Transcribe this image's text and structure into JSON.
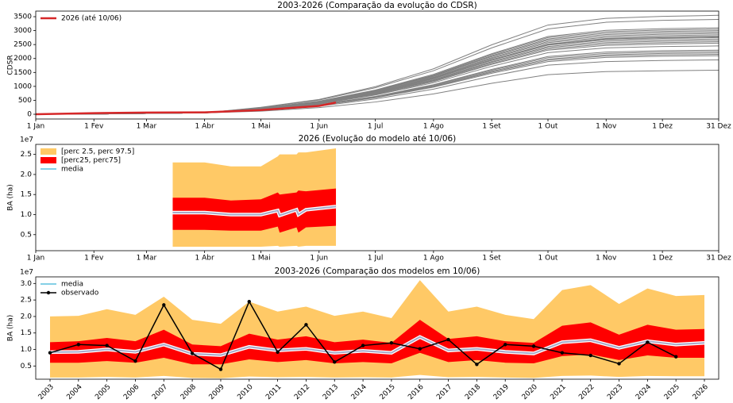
{
  "chart_data": [
    {
      "type": "line",
      "title": "2003-2026 (Comparação da evolução do CDSR)",
      "ylabel": "CDSR",
      "legend": "upper left",
      "xlim": [
        1,
        365
      ],
      "xticks": [
        {
          "value": 1,
          "label": "1 Jan"
        },
        {
          "value": 32,
          "label": "1 Fev"
        },
        {
          "value": 60,
          "label": "1 Mar"
        },
        {
          "value": 91,
          "label": "1 Abr"
        },
        {
          "value": 121,
          "label": "1 Mai"
        },
        {
          "value": 152,
          "label": "1 Jun"
        },
        {
          "value": 182,
          "label": "1 Jul"
        },
        {
          "value": 213,
          "label": "1 Ago"
        },
        {
          "value": 244,
          "label": "1 Set"
        },
        {
          "value": 274,
          "label": "1 Out"
        },
        {
          "value": 305,
          "label": "1 Nov"
        },
        {
          "value": 335,
          "label": "1 Dez"
        },
        {
          "value": 365,
          "label": "31 Dez"
        }
      ],
      "ylim": [
        -170,
        3700
      ],
      "yticks": [
        0,
        500,
        1000,
        1500,
        2000,
        2500,
        3000,
        3500
      ],
      "x": [
        1,
        32,
        60,
        91,
        121,
        152,
        182,
        213,
        244,
        274,
        305,
        335,
        365
      ],
      "series": [
        {
          "color": "#808080",
          "values": [
            0,
            10,
            30,
            50,
            250,
            530,
            990,
            1630,
            2490,
            3200,
            3440,
            3510,
            3550
          ]
        },
        {
          "color": "#808080",
          "values": [
            0,
            10,
            30,
            50,
            240,
            510,
            950,
            1560,
            2380,
            3060,
            3300,
            3370,
            3400
          ]
        },
        {
          "color": "#808080",
          "values": [
            0,
            10,
            30,
            50,
            220,
            470,
            870,
            1430,
            2170,
            2790,
            3010,
            3070,
            3100
          ]
        },
        {
          "color": "#808080",
          "values": [
            0,
            10,
            30,
            50,
            210,
            460,
            850,
            1400,
            2140,
            2750,
            2960,
            3020,
            3050
          ]
        },
        {
          "color": "#808080",
          "values": [
            0,
            10,
            30,
            50,
            210,
            450,
            840,
            1380,
            2100,
            2700,
            2910,
            2970,
            3000
          ]
        },
        {
          "color": "#808080",
          "values": [
            0,
            10,
            30,
            50,
            210,
            440,
            830,
            1360,
            2070,
            2660,
            2860,
            2920,
            2950
          ]
        },
        {
          "color": "#808080",
          "values": [
            0,
            10,
            30,
            50,
            200,
            440,
            810,
            1330,
            2030,
            2610,
            2810,
            2870,
            2900
          ]
        },
        {
          "color": "#808080",
          "values": [
            0,
            10,
            30,
            50,
            200,
            430,
            800,
            1310,
            2000,
            2570,
            2760,
            2820,
            2850
          ]
        },
        {
          "color": "#808080",
          "values": [
            0,
            10,
            30,
            50,
            200,
            420,
            780,
            1290,
            1960,
            2520,
            2720,
            2770,
            2800
          ]
        },
        {
          "color": "#808080",
          "values": [
            0,
            10,
            30,
            50,
            190,
            420,
            780,
            1280,
            1950,
            2500,
            2700,
            2750,
            2780
          ]
        },
        {
          "color": "#808080",
          "values": [
            0,
            10,
            30,
            50,
            190,
            410,
            770,
            1270,
            1930,
            2480,
            2670,
            2720,
            2750
          ]
        },
        {
          "color": "#808080",
          "values": [
            0,
            10,
            30,
            50,
            190,
            410,
            760,
            1240,
            1890,
            2430,
            2620,
            2670,
            2700
          ]
        },
        {
          "color": "#808080",
          "values": [
            0,
            10,
            30,
            50,
            190,
            400,
            740,
            1220,
            1860,
            2390,
            2570,
            2620,
            2650
          ]
        },
        {
          "color": "#808080",
          "values": [
            0,
            10,
            30,
            50,
            180,
            390,
            730,
            1200,
            1820,
            2340,
            2520,
            2570,
            2600
          ]
        },
        {
          "color": "#808080",
          "values": [
            0,
            10,
            30,
            50,
            180,
            380,
            710,
            1170,
            1790,
            2300,
            2470,
            2520,
            2550
          ]
        },
        {
          "color": "#808080",
          "values": [
            0,
            10,
            30,
            50,
            170,
            370,
            690,
            1130,
            1720,
            2210,
            2380,
            2430,
            2450
          ]
        },
        {
          "color": "#808080",
          "values": [
            0,
            10,
            30,
            50,
            160,
            350,
            640,
            1060,
            1610,
            2070,
            2230,
            2280,
            2300
          ]
        },
        {
          "color": "#808080",
          "values": [
            0,
            10,
            30,
            50,
            160,
            340,
            630,
            1040,
            1580,
            2030,
            2180,
            2230,
            2250
          ]
        },
        {
          "color": "#808080",
          "values": [
            0,
            10,
            30,
            50,
            150,
            330,
            620,
            1010,
            1540,
            1980,
            2130,
            2180,
            2200
          ]
        },
        {
          "color": "#808080",
          "values": [
            0,
            10,
            30,
            50,
            150,
            320,
            600,
            990,
            1510,
            1940,
            2090,
            2130,
            2150
          ]
        },
        {
          "color": "#808080",
          "values": [
            0,
            10,
            30,
            50,
            150,
            320,
            590,
            970,
            1470,
            1890,
            2040,
            2080,
            2100
          ]
        },
        {
          "color": "#808080",
          "values": [
            0,
            10,
            30,
            50,
            140,
            290,
            550,
            900,
            1370,
            1760,
            1890,
            1930,
            1950
          ]
        },
        {
          "color": "#808080",
          "values": [
            0,
            10,
            30,
            50,
            110,
            240,
            440,
            730,
            1110,
            1420,
            1530,
            1560,
            1580
          ]
        },
        {
          "name": "2026 (até 10/06)",
          "color": "#d62728",
          "width": 2.5,
          "x": [
            1,
            32,
            60,
            91,
            121,
            152,
            161
          ],
          "values": [
            0,
            40,
            60,
            70,
            150,
            300,
            420
          ]
        }
      ]
    },
    {
      "type": "band",
      "title": "2026 (Evolução do modelo até 10/06)",
      "ylabel": "BA (ha)",
      "offset_label": "1e7",
      "legend": "upper left",
      "xlim": [
        1,
        365
      ],
      "xticks": [
        {
          "value": 1,
          "label": "1 Jan"
        },
        {
          "value": 32,
          "label": "1 Fev"
        },
        {
          "value": 60,
          "label": "1 Mar"
        },
        {
          "value": 91,
          "label": "1 Abr"
        },
        {
          "value": 121,
          "label": "1 Mai"
        },
        {
          "value": 152,
          "label": "1 Jun"
        },
        {
          "value": 182,
          "label": "1 Jul"
        },
        {
          "value": 213,
          "label": "1 Ago"
        },
        {
          "value": 244,
          "label": "1 Set"
        },
        {
          "value": 274,
          "label": "1 Out"
        },
        {
          "value": 305,
          "label": "1 Nov"
        },
        {
          "value": 335,
          "label": "1 Dez"
        },
        {
          "value": 365,
          "label": "31 Dez"
        }
      ],
      "ylim": [
        0.1,
        2.75
      ],
      "yticks": [
        {
          "value": 0.5,
          "label": "0.5"
        },
        {
          "value": 1,
          "label": "1.0"
        },
        {
          "value": 1.5,
          "label": "1.5"
        },
        {
          "value": 2,
          "label": "2.0"
        },
        {
          "value": 2.5,
          "label": "2.5"
        }
      ],
      "x": [
        74,
        91,
        105,
        121,
        130,
        131,
        140,
        141,
        145,
        161
      ],
      "bands": [
        {
          "name": "[perc 2.5, perc 97.5]",
          "color": "#ffc966",
          "lower": [
            0.2,
            0.2,
            0.2,
            0.2,
            0.22,
            0.2,
            0.22,
            0.2,
            0.22,
            0.22
          ],
          "upper": [
            2.3,
            2.3,
            2.2,
            2.2,
            2.45,
            2.5,
            2.5,
            2.55,
            2.55,
            2.65
          ]
        },
        {
          "name": "[perc25, perc75]",
          "color": "#ff0000",
          "lower": [
            0.62,
            0.62,
            0.6,
            0.6,
            0.7,
            0.55,
            0.68,
            0.55,
            0.68,
            0.72
          ],
          "upper": [
            1.42,
            1.42,
            1.35,
            1.38,
            1.55,
            1.5,
            1.55,
            1.6,
            1.58,
            1.65
          ]
        }
      ],
      "series": [
        {
          "name": "media",
          "color": "#5bc0de",
          "values": [
            1.05,
            1.05,
            1.0,
            1.0,
            1.1,
            0.98,
            1.12,
            1.0,
            1.12,
            1.2
          ]
        }
      ]
    },
    {
      "type": "band",
      "title": "2003-2026 (Comparação dos modelos em 10/06)",
      "ylabel": "BA (ha)",
      "offset_label": "1e7",
      "legend": "upper left",
      "categories": [
        "2003",
        "2004",
        "2005",
        "2006",
        "2007",
        "2008",
        "2009",
        "2010",
        "2011",
        "2012",
        "2013",
        "2014",
        "2015",
        "2016",
        "2017",
        "2018",
        "2019",
        "2020",
        "2021",
        "2022",
        "2023",
        "2024",
        "2025",
        "2026"
      ],
      "ylim": [
        0.1,
        3.2
      ],
      "yticks": [
        {
          "value": 0.5,
          "label": "0.5"
        },
        {
          "value": 1,
          "label": "1.0"
        },
        {
          "value": 1.5,
          "label": "1.5"
        },
        {
          "value": 2,
          "label": "2.0"
        },
        {
          "value": 2.5,
          "label": "2.5"
        },
        {
          "value": 3,
          "label": "3.0"
        }
      ],
      "bands": [
        {
          "color": "#ffc966",
          "lower": [
            0.15,
            0.15,
            0.17,
            0.15,
            0.2,
            0.14,
            0.13,
            0.18,
            0.16,
            0.17,
            0.15,
            0.16,
            0.15,
            0.23,
            0.16,
            0.17,
            0.15,
            0.14,
            0.2,
            0.21,
            0.17,
            0.2,
            0.19,
            0.19
          ],
          "upper": [
            2.0,
            2.02,
            2.22,
            2.05,
            2.6,
            1.9,
            1.78,
            2.45,
            2.15,
            2.3,
            2.02,
            2.15,
            1.95,
            3.1,
            2.15,
            2.3,
            2.05,
            1.92,
            2.8,
            2.95,
            2.38,
            2.85,
            2.62,
            2.65
          ]
        },
        {
          "color": "#ff0000",
          "lower": [
            0.6,
            0.6,
            0.65,
            0.6,
            0.75,
            0.55,
            0.55,
            0.7,
            0.62,
            0.68,
            0.58,
            0.62,
            0.58,
            0.9,
            0.62,
            0.68,
            0.6,
            0.58,
            0.8,
            0.85,
            0.68,
            0.82,
            0.75,
            0.75
          ],
          "upper": [
            1.22,
            1.25,
            1.35,
            1.25,
            1.6,
            1.15,
            1.1,
            1.48,
            1.3,
            1.4,
            1.22,
            1.3,
            1.2,
            1.9,
            1.32,
            1.4,
            1.25,
            1.2,
            1.72,
            1.82,
            1.45,
            1.75,
            1.6,
            1.62
          ]
        }
      ],
      "series": [
        {
          "name": "media",
          "color": "#5bc0de",
          "values": [
            0.92,
            0.93,
            1.0,
            0.93,
            1.15,
            0.87,
            0.83,
            1.08,
            0.97,
            1.02,
            0.9,
            0.96,
            0.9,
            1.38,
            0.97,
            1.02,
            0.93,
            0.88,
            1.22,
            1.28,
            1.05,
            1.25,
            1.15,
            1.2
          ]
        },
        {
          "name": "observado",
          "color": "#000000",
          "marker": true,
          "values": [
            0.9,
            1.15,
            1.12,
            0.65,
            2.35,
            0.88,
            0.4,
            2.45,
            0.92,
            1.75,
            0.62,
            1.12,
            1.2,
            1.02,
            1.3,
            0.55,
            1.15,
            1.1,
            0.9,
            0.82,
            0.57,
            1.22,
            0.78,
            null
          ]
        }
      ]
    }
  ]
}
